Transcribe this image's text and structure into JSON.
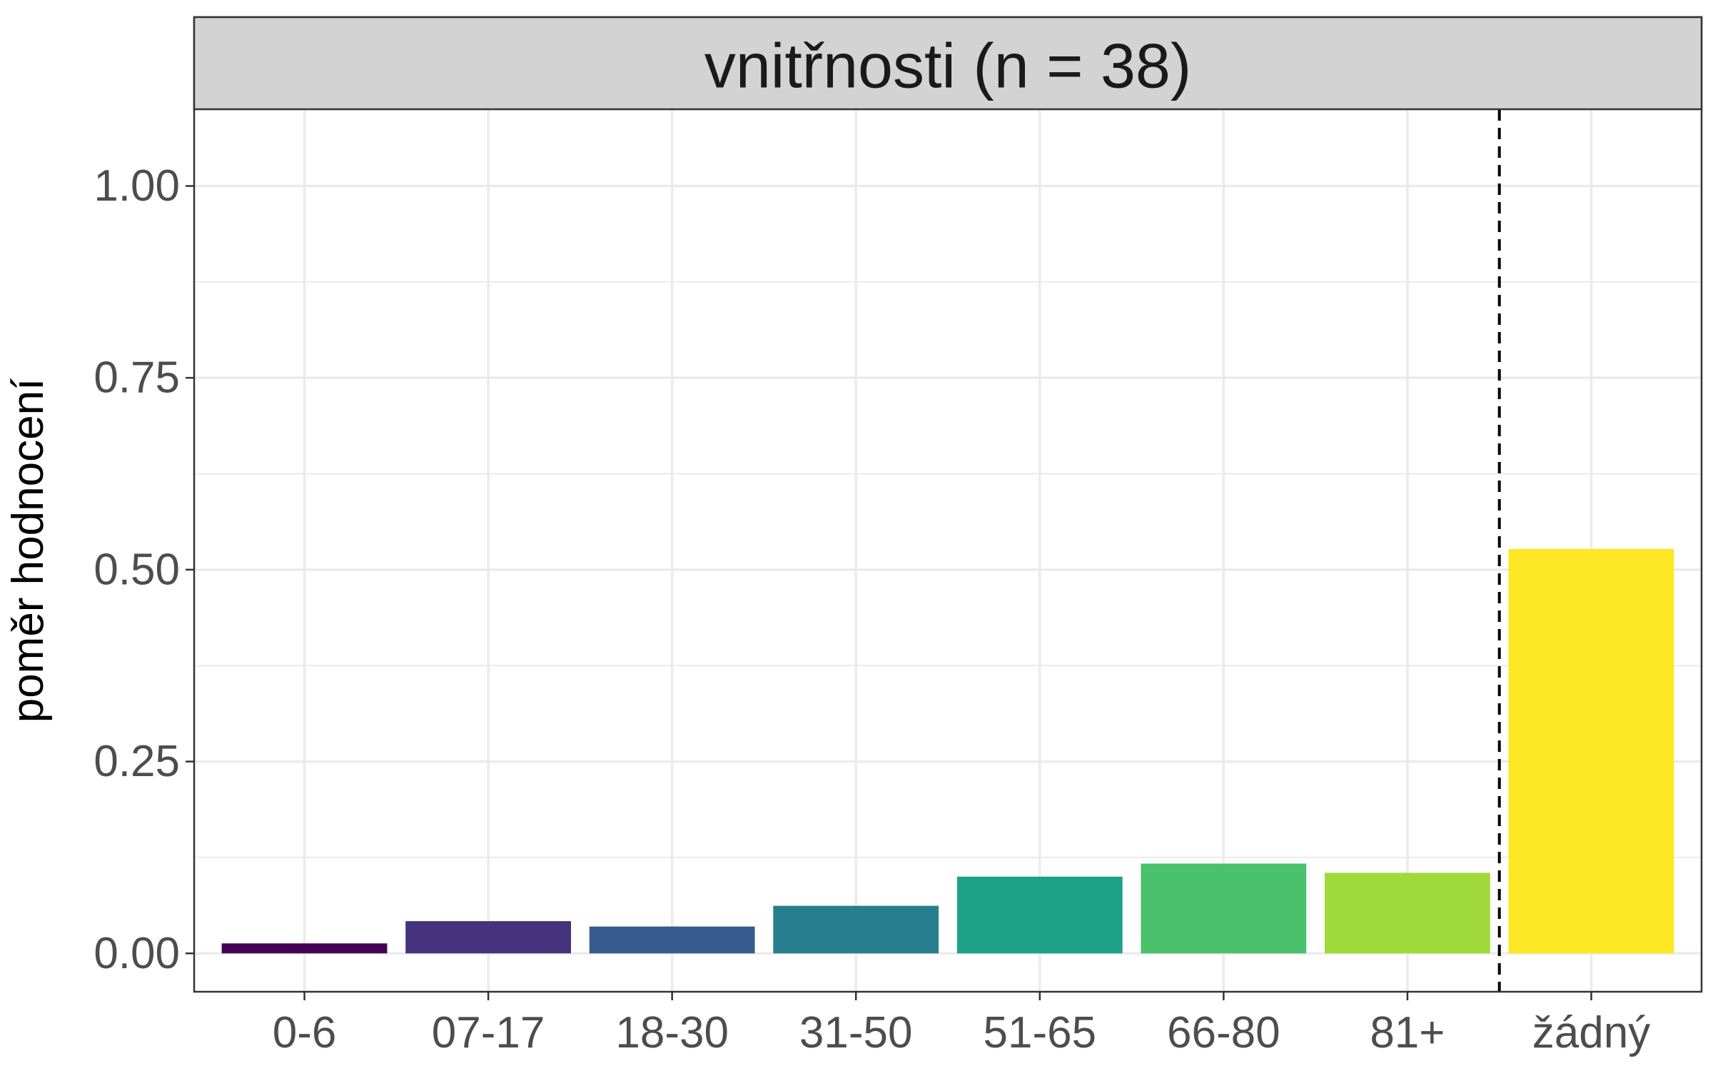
{
  "chart_data": {
    "type": "bar",
    "title": "vnitřnosti (n = 38)",
    "xlabel": "",
    "ylabel": "poměr hodnocení",
    "categories": [
      "0-6",
      "07-17",
      "18-30",
      "31-50",
      "51-65",
      "66-80",
      "81+",
      "žádný"
    ],
    "values": [
      0.013,
      0.042,
      0.035,
      0.062,
      0.1,
      0.117,
      0.105,
      0.527
    ],
    "colors": [
      "#440154",
      "#46337E",
      "#365C8D",
      "#277F8E",
      "#1FA187",
      "#4AC16D",
      "#9FDA3A",
      "#FDE725"
    ],
    "ylim": [
      -0.05,
      1.1
    ],
    "yticks": [
      "0.00",
      "0.25",
      "0.50",
      "0.75",
      "1.00"
    ],
    "ytick_values": [
      0,
      0.25,
      0.5,
      0.75,
      1.0
    ],
    "grid": true,
    "reference_line": {
      "style": "dashed",
      "between_categories": [
        "81+",
        "žádný"
      ]
    },
    "facet_strip_color": "#d3d3d3"
  }
}
